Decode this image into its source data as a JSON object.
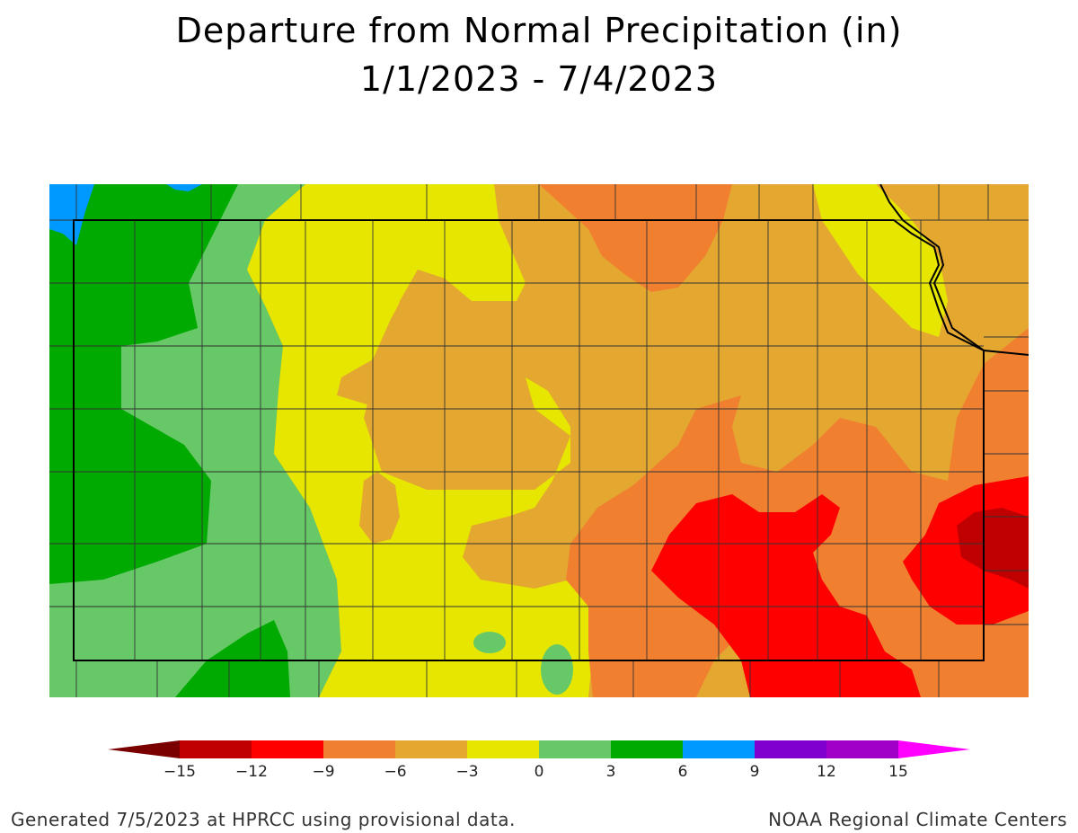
{
  "title": {
    "line1": "Departure from Normal Precipitation (in)",
    "line2": "1/1/2023 - 7/4/2023"
  },
  "legend": {
    "ticks": [
      "-15",
      "-12",
      "-9",
      "-6",
      "-3",
      "0",
      "3",
      "6",
      "9",
      "12",
      "15"
    ],
    "bins": [
      {
        "range": "< -15",
        "color": "#7a0000"
      },
      {
        "range": "-15 to -12",
        "color": "#c00000"
      },
      {
        "range": "-12 to -9",
        "color": "#ff0000"
      },
      {
        "range": "-9 to -6",
        "color": "#f08030"
      },
      {
        "range": "-6 to -3",
        "color": "#e4a830"
      },
      {
        "range": "-3 to 0",
        "color": "#e6e600"
      },
      {
        "range": "0 to 3",
        "color": "#66c866"
      },
      {
        "range": "3 to 6",
        "color": "#00aa00"
      },
      {
        "range": "6 to 9",
        "color": "#0099ff"
      },
      {
        "range": "9 to 12",
        "color": "#8000d0"
      },
      {
        "range": "12 to 15",
        "color": "#a000c8"
      },
      {
        "range": "> 15",
        "color": "#ff00ff"
      }
    ]
  },
  "map": {
    "state": "Kansas",
    "variable": "Departure from Normal Precipitation",
    "units": "in"
  },
  "footer": {
    "left": "Generated 7/5/2023 at HPRCC using provisional data.",
    "right": "NOAA Regional Climate Centers"
  }
}
